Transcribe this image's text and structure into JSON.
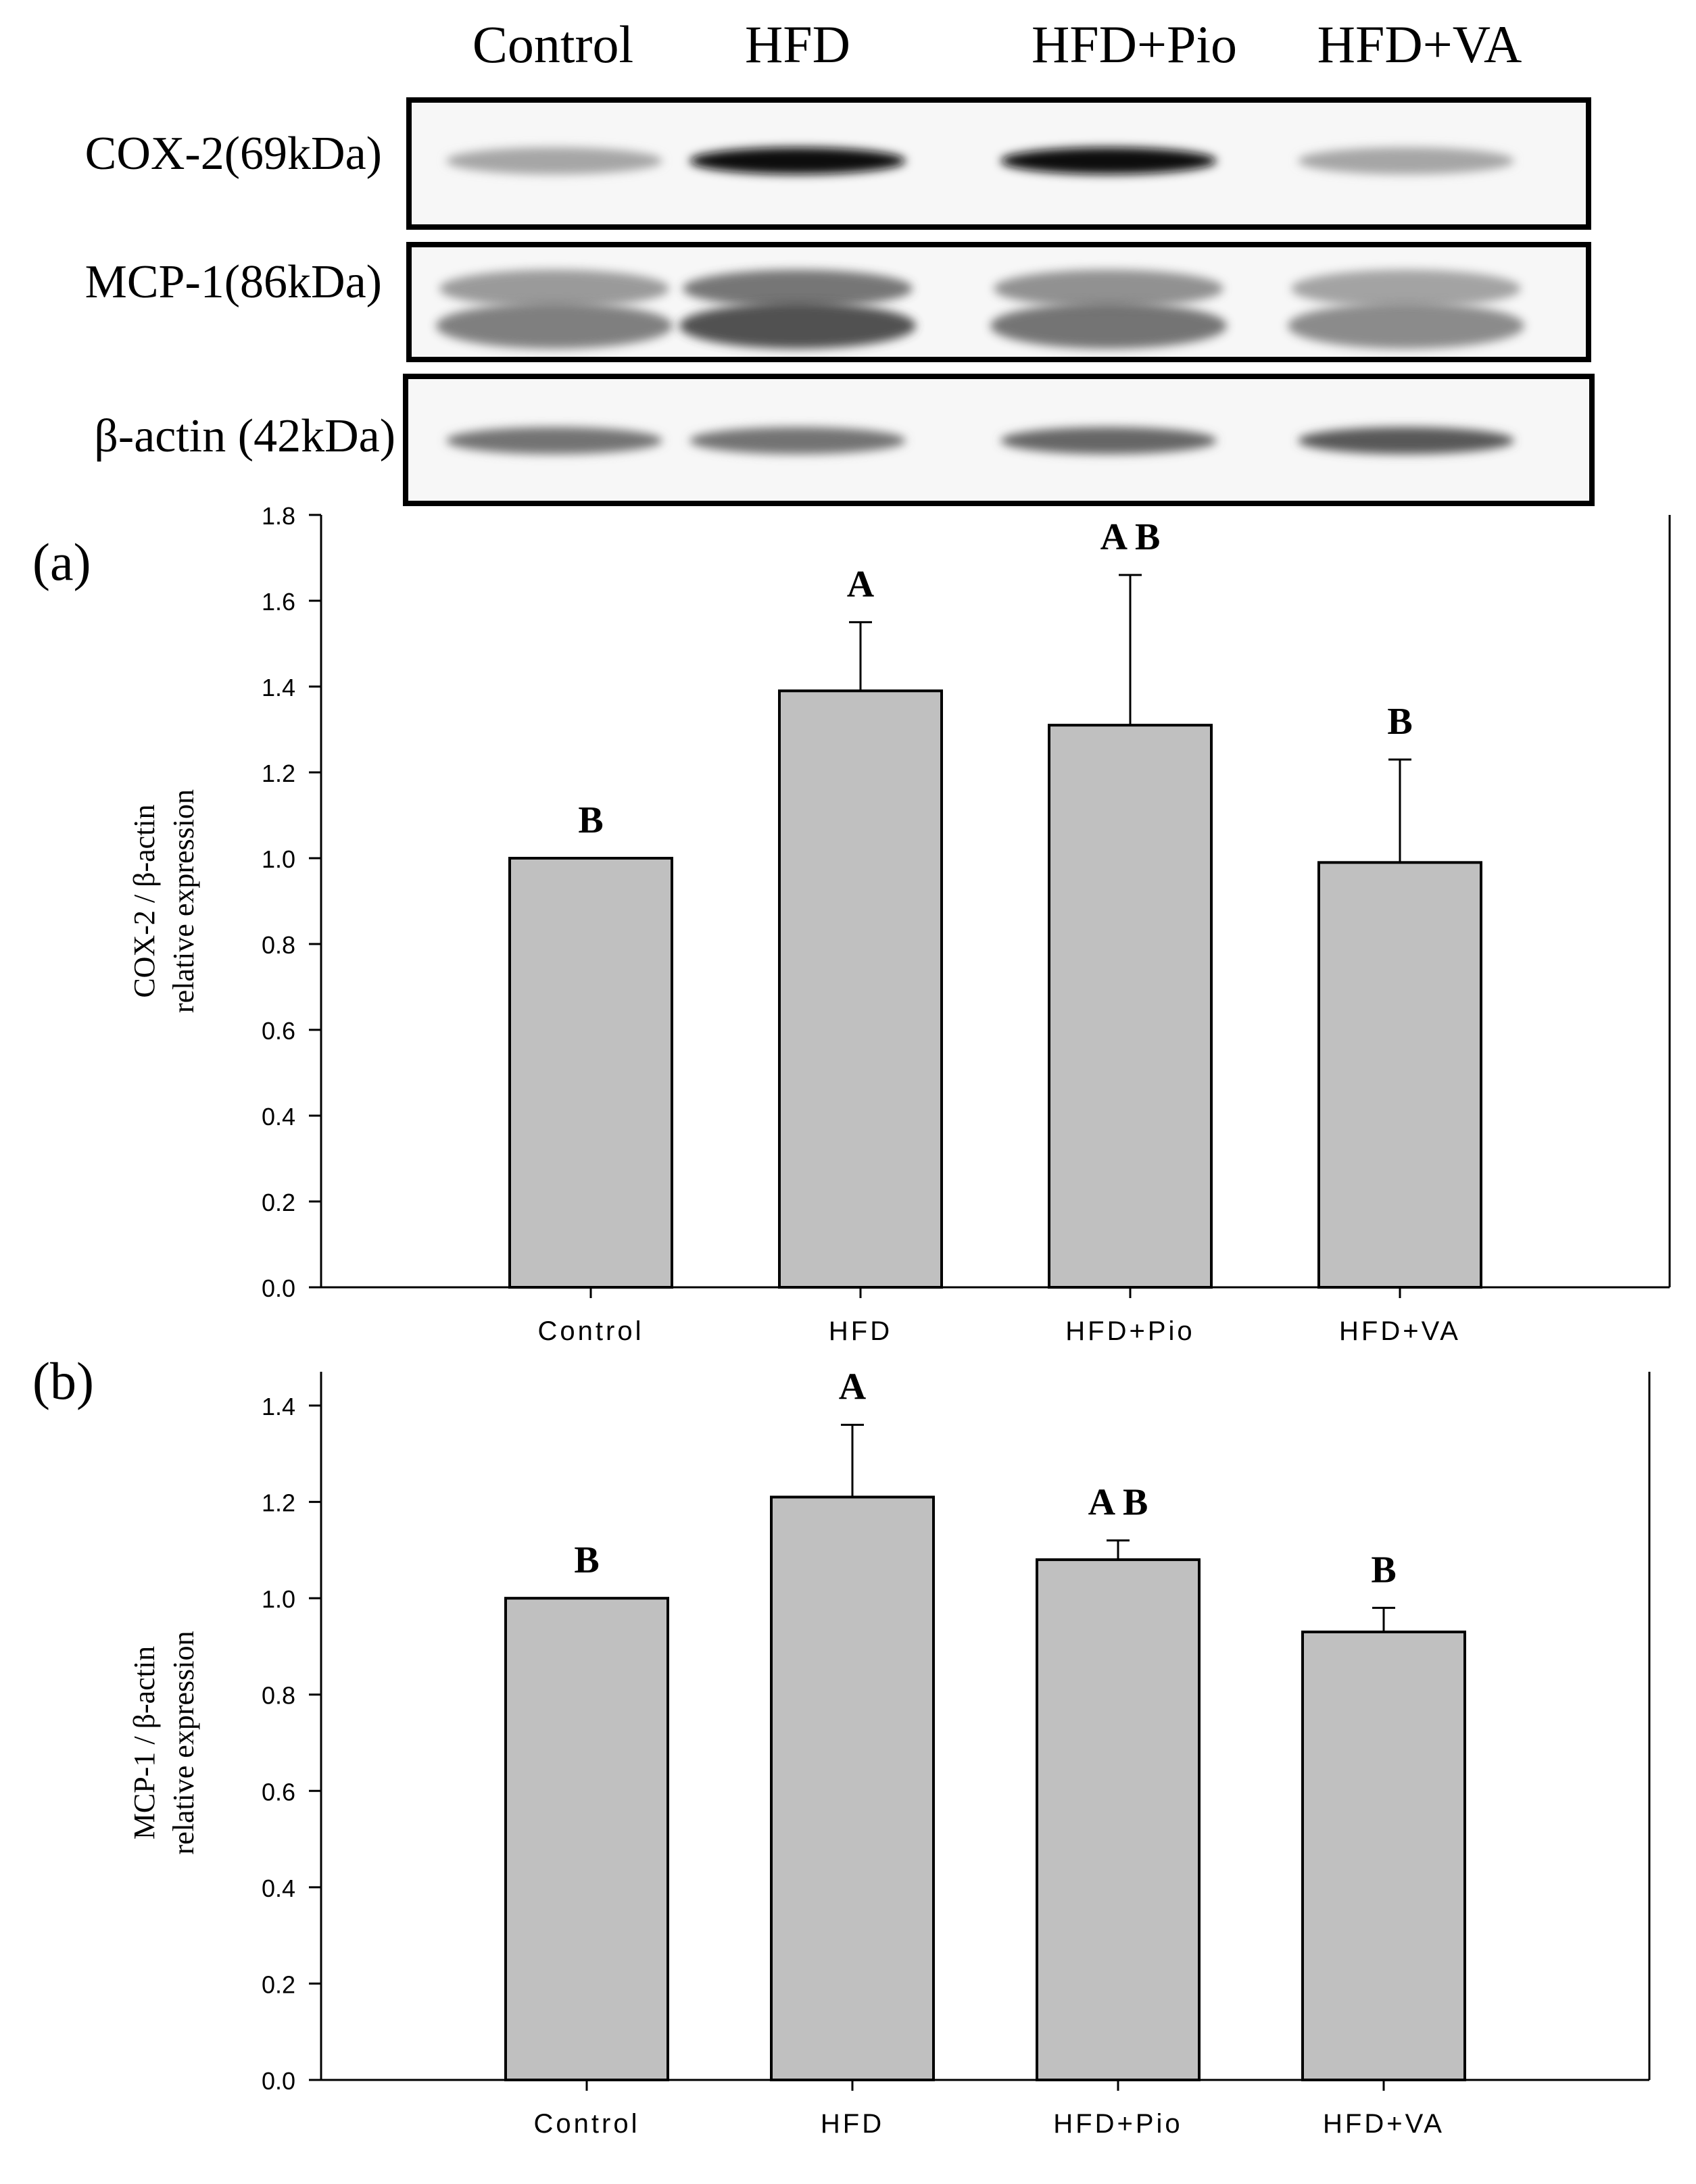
{
  "blot": {
    "lanes": [
      "Control",
      "HFD",
      "HFD+Pio",
      "HFD+VA"
    ],
    "rows": [
      {
        "label": "COX-2(69kDa)",
        "intensity": [
          0.35,
          0.95,
          0.95,
          0.35
        ]
      },
      {
        "label": "MCP-1(86kDa)",
        "intensity": [
          0.55,
          0.75,
          0.6,
          0.5
        ]
      },
      {
        "label": "β-actin (42kDa)",
        "intensity": [
          0.55,
          0.55,
          0.6,
          0.65
        ]
      }
    ]
  },
  "colors": {
    "bar_fill": "#c0c0c0",
    "bar_stroke": "#000000",
    "axis": "#000000"
  },
  "chart_data": [
    {
      "type": "bar",
      "panel_label": "(a)",
      "categories": [
        "Control",
        "HFD",
        "HFD+Pio",
        "HFD+VA"
      ],
      "values": [
        1.0,
        1.39,
        1.31,
        0.99
      ],
      "error_upper": [
        0.0,
        0.16,
        0.35,
        0.24
      ],
      "significance_letters": [
        "B",
        "A",
        "A B",
        "B"
      ],
      "ylabel_line1": "COX-2 / β-actin",
      "ylabel_line2": "relative expression",
      "xlabel": "",
      "ylim": [
        0.0,
        1.8
      ],
      "yticks": [
        0.0,
        0.2,
        0.4,
        0.6,
        0.8,
        1.0,
        1.2,
        1.4,
        1.6,
        1.8
      ],
      "ytick_labels": [
        "0.0",
        "0.2",
        "0.4",
        "0.6",
        "0.8",
        "1.0",
        "1.2",
        "1.4",
        "1.6",
        "1.8"
      ],
      "grid": false
    },
    {
      "type": "bar",
      "panel_label": "(b)",
      "categories": [
        "Control",
        "HFD",
        "HFD+Pio",
        "HFD+VA"
      ],
      "values": [
        1.0,
        1.21,
        1.08,
        0.93
      ],
      "error_upper": [
        0.0,
        0.15,
        0.04,
        0.05
      ],
      "significance_letters": [
        "B",
        "A",
        "A B",
        "B"
      ],
      "ylabel_line1": "MCP-1 / β-actin",
      "ylabel_line2": "relative expression",
      "xlabel": "",
      "ylim": [
        0.0,
        1.4
      ],
      "yticks": [
        0.0,
        0.2,
        0.4,
        0.6,
        0.8,
        1.0,
        1.2,
        1.4
      ],
      "ytick_labels": [
        "0.0",
        "0.2",
        "0.4",
        "0.6",
        "0.8",
        "1.0",
        "1.2",
        "1.4"
      ],
      "grid": false
    }
  ]
}
